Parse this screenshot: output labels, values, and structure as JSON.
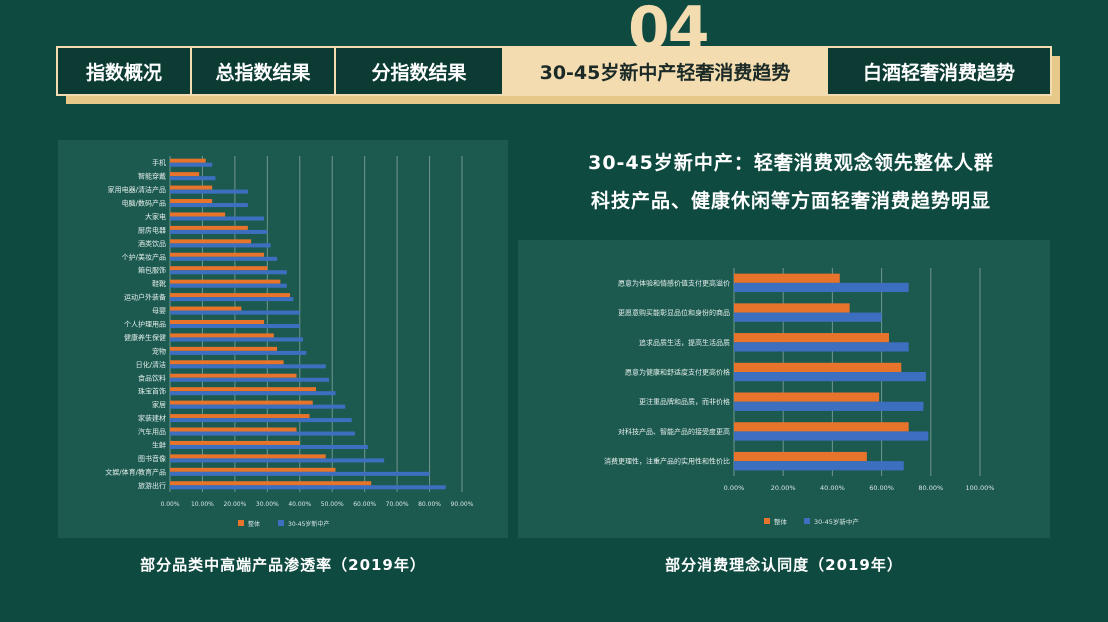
{
  "section_number": "04",
  "tabs": [
    {
      "label": "指数概况",
      "active": false
    },
    {
      "label": "总指数结果",
      "active": false
    },
    {
      "label": "分指数结果",
      "active": false
    },
    {
      "label": "30-45岁新中产轻奢消费趋势",
      "active": true
    },
    {
      "label": "白酒轻奢消费趋势",
      "active": false
    }
  ],
  "headline": {
    "line1": "30-45岁新中产：轻奢消费观念领先整体人群",
    "line2": "科技产品、健康休闲等方面轻奢消费趋势明显"
  },
  "colors": {
    "orange": "#e8742b",
    "blue": "#3d6fc0",
    "accent": "#f3dcb0"
  },
  "chart_data": [
    {
      "type": "bar",
      "orientation": "horizontal",
      "caption": "部分品类中高端产品渗透率（2019年）",
      "categories": [
        "手机",
        "智能穿戴",
        "家用电器/清洁产品",
        "电脑/数码产品",
        "大家电",
        "厨房电器",
        "酒类饮品",
        "个护/美妆产品",
        "箱包服饰",
        "鞋靴",
        "运动户外装备",
        "母婴",
        "个人护理用品",
        "健康养生保健",
        "宠物",
        "日化/清洁",
        "食品饮料",
        "珠宝首饰",
        "家居",
        "家装建材",
        "汽车用品",
        "生鲜",
        "图书音像",
        "文娱/体育/教育产品",
        "旅游出行"
      ],
      "series": [
        {
          "name": "整体",
          "values": [
            11,
            9,
            13,
            13,
            17,
            24,
            25,
            29,
            30,
            34,
            37,
            22,
            29,
            32,
            33,
            35,
            39,
            45,
            44,
            43,
            39,
            40,
            48,
            51,
            62
          ]
        },
        {
          "name": "30-45岁新中产",
          "values": [
            13,
            14,
            24,
            24,
            29,
            30,
            31,
            33,
            36,
            36,
            38,
            40,
            40,
            41,
            42,
            48,
            49,
            51,
            54,
            56,
            57,
            61,
            66,
            80,
            85
          ]
        }
      ],
      "x_ticks": [
        "0.00%",
        "10.00%",
        "20.00%",
        "30.00%",
        "40.00%",
        "50.00%",
        "60.00%",
        "70.00%",
        "80.00%",
        "90.00%"
      ],
      "xlim": [
        0,
        90
      ],
      "legend_position": "bottom"
    },
    {
      "type": "bar",
      "orientation": "horizontal",
      "caption": "部分消费理念认同度（2019年）",
      "categories": [
        "愿意为体验和情感价值支付更高溢价",
        "更愿意购买能彰显品位和身份的商品",
        "追求品质生活，提高生活品质",
        "愿意为健康和舒适度支付更高价格",
        "更注重品牌和品质，而非价格",
        "对科技产品、智能产品的接受度更高",
        "消费更理性，注重产品的实用性和性价比"
      ],
      "series": [
        {
          "name": "整体",
          "values": [
            43,
            47,
            63,
            68,
            59,
            71,
            54
          ]
        },
        {
          "name": "30-45岁新中产",
          "values": [
            71,
            60,
            71,
            78,
            77,
            79,
            69
          ]
        }
      ],
      "x_ticks": [
        "0.00%",
        "20.00%",
        "40.00%",
        "60.00%",
        "80.00%",
        "100.00%"
      ],
      "xlim": [
        0,
        100
      ],
      "legend_position": "bottom"
    }
  ]
}
